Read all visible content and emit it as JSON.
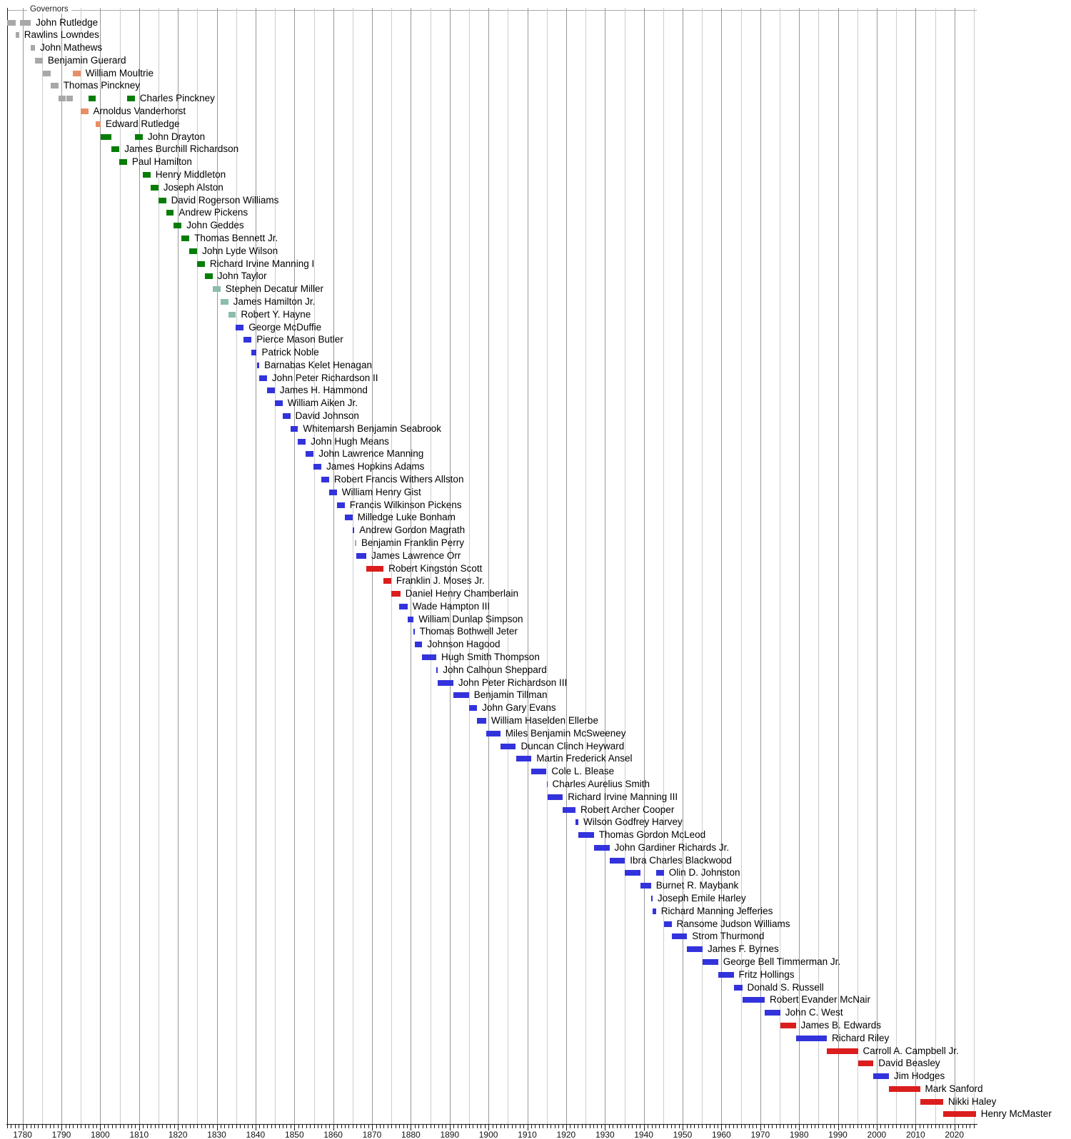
{
  "chart_data": {
    "type": "bar",
    "subtype": "timeline-gantt",
    "title": "Governors",
    "xlabel": "",
    "ylabel": "",
    "xlim": [
      1776,
      2025.7
    ],
    "grid": "vertical lines every 5 years, darker every 10 years",
    "legend_position": "none",
    "axis_tick_labels": [
      "1780",
      "1790",
      "1800",
      "1810",
      "1820",
      "1830",
      "1840",
      "1850",
      "1860",
      "1870",
      "1880",
      "1890",
      "1900",
      "1910",
      "1920",
      "1930",
      "1940",
      "1950",
      "1960",
      "1970",
      "1980",
      "1990",
      "2000",
      "2010",
      "2020"
    ],
    "minor_tick_every_years": 1,
    "colors": {
      "gray": "#a8a8a8",
      "salmon": "#e78e67",
      "green": "#077d07",
      "teal": "#8dbcaa",
      "blue": "#3333dd",
      "red": "#dc1d1d"
    },
    "rows": [
      {
        "name": "John Rutledge",
        "terms": [
          [
            1776.05,
            1778.3,
            "gray"
          ],
          [
            1779.3,
            1782.1,
            "gray"
          ]
        ]
      },
      {
        "name": "Rawlins Lowndes",
        "terms": [
          [
            1778.3,
            1779.1,
            "gray"
          ]
        ]
      },
      {
        "name": "John Mathews",
        "terms": [
          [
            1782.1,
            1783.2,
            "gray"
          ]
        ]
      },
      {
        "name": "Benjamin Guerard",
        "terms": [
          [
            1783.2,
            1785.2,
            "gray"
          ]
        ]
      },
      {
        "name": "William Moultrie",
        "terms": [
          [
            1785.2,
            1787.2,
            "gray"
          ],
          [
            1792.95,
            1794.9,
            "salmon"
          ]
        ]
      },
      {
        "name": "Thomas Pinckney",
        "terms": [
          [
            1787.2,
            1789.2,
            "gray"
          ]
        ]
      },
      {
        "name": "Charles Pinckney",
        "terms": [
          [
            1789.2,
            1791.1,
            "gray"
          ],
          [
            1791.3,
            1793.0,
            "gray"
          ],
          [
            1796.9,
            1798.9,
            "green"
          ],
          [
            1806.9,
            1808.9,
            "green"
          ]
        ]
      },
      {
        "name": "Arnoldus Vanderhorst",
        "terms": [
          [
            1794.9,
            1796.9,
            "salmon"
          ]
        ]
      },
      {
        "name": "Edward Rutledge",
        "terms": [
          [
            1798.9,
            1800.1,
            "salmon"
          ]
        ]
      },
      {
        "name": "John Drayton",
        "terms": [
          [
            1800.1,
            1802.95,
            "green"
          ],
          [
            1808.95,
            1810.95,
            "green"
          ]
        ]
      },
      {
        "name": "James Burchill Richardson",
        "terms": [
          [
            1802.95,
            1804.95,
            "green"
          ]
        ]
      },
      {
        "name": "Paul Hamilton",
        "terms": [
          [
            1804.95,
            1806.9,
            "green"
          ]
        ]
      },
      {
        "name": "Henry Middleton",
        "terms": [
          [
            1810.95,
            1812.95,
            "green"
          ]
        ]
      },
      {
        "name": "Joseph Alston",
        "terms": [
          [
            1812.95,
            1814.95,
            "green"
          ]
        ]
      },
      {
        "name": "David Rogerson Williams",
        "terms": [
          [
            1814.95,
            1816.95,
            "green"
          ]
        ]
      },
      {
        "name": "Andrew Pickens",
        "terms": [
          [
            1816.95,
            1818.95,
            "green"
          ]
        ]
      },
      {
        "name": "John Geddes",
        "terms": [
          [
            1818.95,
            1820.95,
            "green"
          ]
        ]
      },
      {
        "name": "Thomas Bennett Jr.",
        "terms": [
          [
            1820.95,
            1822.95,
            "green"
          ]
        ]
      },
      {
        "name": "John Lyde Wilson",
        "terms": [
          [
            1822.95,
            1824.95,
            "green"
          ]
        ]
      },
      {
        "name": "Richard Irvine Manning I",
        "terms": [
          [
            1824.95,
            1826.95,
            "green"
          ]
        ]
      },
      {
        "name": "John Taylor",
        "terms": [
          [
            1826.95,
            1828.95,
            "green"
          ]
        ]
      },
      {
        "name": "Stephen Decatur Miller",
        "terms": [
          [
            1828.95,
            1830.95,
            "teal"
          ]
        ]
      },
      {
        "name": "James Hamilton Jr.",
        "terms": [
          [
            1830.95,
            1832.95,
            "teal"
          ]
        ]
      },
      {
        "name": "Robert Y. Hayne",
        "terms": [
          [
            1832.95,
            1834.95,
            "teal"
          ]
        ]
      },
      {
        "name": "George McDuffie",
        "terms": [
          [
            1834.95,
            1836.95,
            "blue"
          ]
        ]
      },
      {
        "name": "Pierce Mason Butler",
        "terms": [
          [
            1836.95,
            1838.95,
            "blue"
          ]
        ]
      },
      {
        "name": "Patrick Noble",
        "terms": [
          [
            1838.95,
            1840.3,
            "blue"
          ]
        ]
      },
      {
        "name": "Barnabas Kelet Henagan",
        "terms": [
          [
            1840.3,
            1840.95,
            "blue"
          ]
        ]
      },
      {
        "name": "John Peter Richardson II",
        "terms": [
          [
            1840.95,
            1842.95,
            "blue"
          ]
        ]
      },
      {
        "name": "James H. Hammond",
        "terms": [
          [
            1842.95,
            1844.95,
            "blue"
          ]
        ]
      },
      {
        "name": "William Aiken Jr.",
        "terms": [
          [
            1844.95,
            1846.95,
            "blue"
          ]
        ]
      },
      {
        "name": "David Johnson",
        "terms": [
          [
            1846.95,
            1848.95,
            "blue"
          ]
        ]
      },
      {
        "name": "Whitemarsh Benjamin Seabrook",
        "terms": [
          [
            1848.95,
            1850.95,
            "blue"
          ]
        ]
      },
      {
        "name": "John Hugh Means",
        "terms": [
          [
            1850.95,
            1852.95,
            "blue"
          ]
        ]
      },
      {
        "name": "John Lawrence Manning",
        "terms": [
          [
            1852.95,
            1854.95,
            "blue"
          ]
        ]
      },
      {
        "name": "James Hopkins Adams",
        "terms": [
          [
            1854.95,
            1856.95,
            "blue"
          ]
        ]
      },
      {
        "name": "Robert Francis Withers Allston",
        "terms": [
          [
            1856.95,
            1858.95,
            "blue"
          ]
        ]
      },
      {
        "name": "William Henry Gist",
        "terms": [
          [
            1858.95,
            1860.95,
            "blue"
          ]
        ]
      },
      {
        "name": "Francis Wilkinson Pickens",
        "terms": [
          [
            1860.95,
            1862.95,
            "blue"
          ]
        ]
      },
      {
        "name": "Milledge Luke Bonham",
        "terms": [
          [
            1862.95,
            1864.95,
            "blue"
          ]
        ]
      },
      {
        "name": "Andrew Gordon Magrath",
        "terms": [
          [
            1864.95,
            1865.45,
            "blue"
          ]
        ]
      },
      {
        "name": "Benjamin Franklin Perry",
        "terms": [
          [
            1865.5,
            1865.95,
            "gray"
          ]
        ]
      },
      {
        "name": "James Lawrence Orr",
        "terms": [
          [
            1865.95,
            1868.55,
            "blue"
          ]
        ]
      },
      {
        "name": "Robert Kingston Scott",
        "terms": [
          [
            1868.55,
            1872.95,
            "red"
          ]
        ]
      },
      {
        "name": "Franklin J. Moses Jr.",
        "terms": [
          [
            1872.95,
            1874.95,
            "red"
          ]
        ]
      },
      {
        "name": "Daniel Henry Chamberlain",
        "terms": [
          [
            1874.95,
            1877.3,
            "red"
          ]
        ]
      },
      {
        "name": "Wade Hampton III",
        "terms": [
          [
            1876.95,
            1879.15,
            "blue"
          ]
        ]
      },
      {
        "name": "William Dunlap Simpson",
        "terms": [
          [
            1879.15,
            1880.7,
            "blue"
          ]
        ]
      },
      {
        "name": "Thomas Bothwell Jeter",
        "terms": [
          [
            1880.7,
            1880.95,
            "blue"
          ]
        ]
      },
      {
        "name": "Johnson Hagood",
        "terms": [
          [
            1880.95,
            1882.95,
            "blue"
          ]
        ]
      },
      {
        "name": "Hugh Smith Thompson",
        "terms": [
          [
            1882.95,
            1886.55,
            "blue"
          ]
        ]
      },
      {
        "name": "John Calhoun Sheppard",
        "terms": [
          [
            1886.55,
            1886.95,
            "blue"
          ]
        ]
      },
      {
        "name": "John Peter Richardson III",
        "terms": [
          [
            1886.95,
            1890.95,
            "blue"
          ]
        ]
      },
      {
        "name": "Benjamin Tillman",
        "terms": [
          [
            1890.95,
            1894.95,
            "blue"
          ]
        ]
      },
      {
        "name": "John Gary Evans",
        "terms": [
          [
            1894.95,
            1897.05,
            "blue"
          ]
        ]
      },
      {
        "name": "William Haselden Ellerbe",
        "terms": [
          [
            1897.05,
            1899.4,
            "blue"
          ]
        ]
      },
      {
        "name": "Miles Benjamin McSweeney",
        "terms": [
          [
            1899.4,
            1903.05,
            "blue"
          ]
        ]
      },
      {
        "name": "Duncan Clinch Heyward",
        "terms": [
          [
            1903.05,
            1907.05,
            "blue"
          ]
        ]
      },
      {
        "name": "Martin Frederick Ansel",
        "terms": [
          [
            1907.05,
            1911.05,
            "blue"
          ]
        ]
      },
      {
        "name": "Cole L. Blease",
        "terms": [
          [
            1911.05,
            1914.95,
            "blue"
          ]
        ]
      },
      {
        "name": "Charles Aurelius Smith",
        "terms": [
          [
            1915.0,
            1915.15,
            "blue"
          ]
        ]
      },
      {
        "name": "Richard Irvine Manning III",
        "terms": [
          [
            1915.15,
            1919.15,
            "blue"
          ]
        ]
      },
      {
        "name": "Robert Archer Cooper",
        "terms": [
          [
            1919.15,
            1922.4,
            "blue"
          ]
        ]
      },
      {
        "name": "Wilson Godfrey Harvey",
        "terms": [
          [
            1922.4,
            1923.15,
            "blue"
          ]
        ]
      },
      {
        "name": "Thomas Gordon McLeod",
        "terms": [
          [
            1923.15,
            1927.15,
            "blue"
          ]
        ]
      },
      {
        "name": "John Gardiner Richards Jr.",
        "terms": [
          [
            1927.15,
            1931.15,
            "blue"
          ]
        ]
      },
      {
        "name": "Ibra Charles Blackwood",
        "terms": [
          [
            1931.15,
            1935.15,
            "blue"
          ]
        ]
      },
      {
        "name": "Olin D. Johnston",
        "terms": [
          [
            1935.15,
            1939.15,
            "blue"
          ],
          [
            1943.15,
            1945.15,
            "blue"
          ]
        ]
      },
      {
        "name": "Burnet R. Maybank",
        "terms": [
          [
            1939.15,
            1941.85,
            "blue"
          ]
        ]
      },
      {
        "name": "Joseph Emile Harley",
        "terms": [
          [
            1941.85,
            1942.25,
            "blue"
          ]
        ]
      },
      {
        "name": "Richard Manning Jefferies",
        "terms": [
          [
            1942.25,
            1943.15,
            "blue"
          ]
        ]
      },
      {
        "name": "Ransome Judson Williams",
        "terms": [
          [
            1945.15,
            1947.15,
            "blue"
          ]
        ]
      },
      {
        "name": "Strom Thurmond",
        "terms": [
          [
            1947.15,
            1951.15,
            "blue"
          ]
        ]
      },
      {
        "name": "James F. Byrnes",
        "terms": [
          [
            1951.15,
            1955.15,
            "blue"
          ]
        ]
      },
      {
        "name": "George Bell Timmerman Jr.",
        "terms": [
          [
            1955.15,
            1959.15,
            "blue"
          ]
        ]
      },
      {
        "name": "Fritz Hollings",
        "terms": [
          [
            1959.15,
            1963.15,
            "blue"
          ]
        ]
      },
      {
        "name": "Donald S. Russell",
        "terms": [
          [
            1963.15,
            1965.35,
            "blue"
          ]
        ]
      },
      {
        "name": "Robert Evander McNair",
        "terms": [
          [
            1965.35,
            1971.15,
            "blue"
          ]
        ]
      },
      {
        "name": "John C. West",
        "terms": [
          [
            1971.15,
            1975.15,
            "blue"
          ]
        ]
      },
      {
        "name": "James B. Edwards",
        "terms": [
          [
            1975.15,
            1979.15,
            "red"
          ]
        ]
      },
      {
        "name": "Richard Riley",
        "terms": [
          [
            1979.15,
            1987.15,
            "blue"
          ]
        ]
      },
      {
        "name": "Carroll A. Campbell Jr.",
        "terms": [
          [
            1987.15,
            1995.15,
            "red"
          ]
        ]
      },
      {
        "name": "David Beasley",
        "terms": [
          [
            1995.15,
            1999.15,
            "red"
          ]
        ]
      },
      {
        "name": "Jim Hodges",
        "terms": [
          [
            1999.15,
            2003.15,
            "blue"
          ]
        ]
      },
      {
        "name": "Mark Sanford",
        "terms": [
          [
            2003.15,
            2011.15,
            "red"
          ]
        ]
      },
      {
        "name": "Nikki Haley",
        "terms": [
          [
            2011.15,
            2017.1,
            "red"
          ]
        ]
      },
      {
        "name": "Henry McMaster",
        "terms": [
          [
            2017.1,
            2025.55,
            "red"
          ]
        ]
      }
    ]
  }
}
